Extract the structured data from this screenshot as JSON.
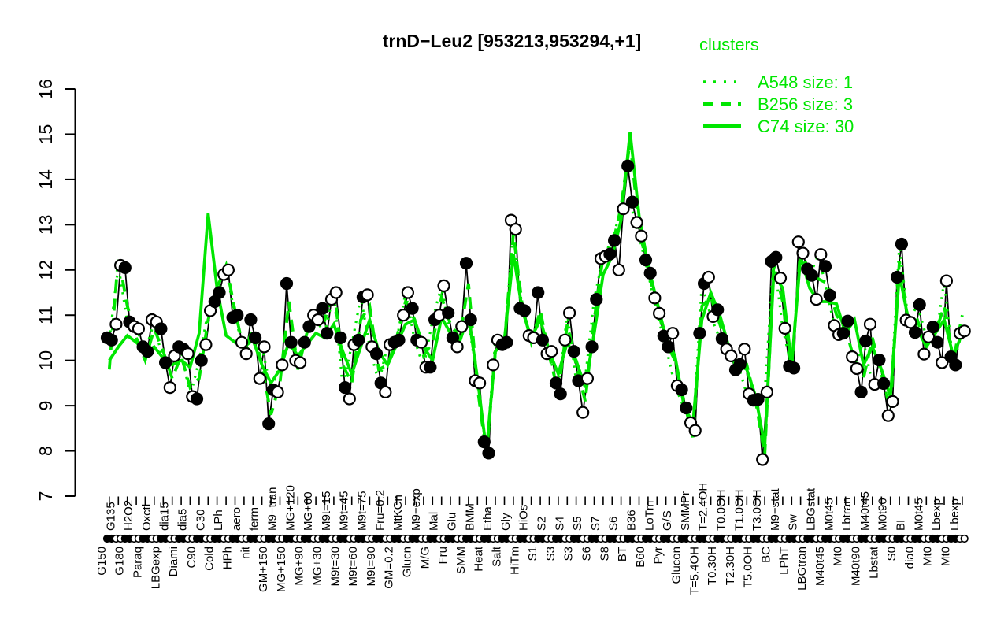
{
  "chart_data": {
    "type": "line",
    "title": "trnD−Leu2 [953213,953294,+1]",
    "ylabel": "",
    "xlabel": "",
    "ylim": [
      7,
      16
    ],
    "yticks": [
      7,
      8,
      9,
      10,
      11,
      12,
      13,
      14,
      15,
      16
    ],
    "grid": false,
    "colors": {
      "cluster_green": "#00e600",
      "points_black": "#000000",
      "background": "#ffffff"
    },
    "legend": {
      "heading": "clusters",
      "position": "top-right",
      "entries": [
        {
          "label": "A548 size: 1",
          "style": "dotted"
        },
        {
          "label": "B256 size: 3",
          "style": "dashed"
        },
        {
          "label": "C74 size: 30",
          "style": "solid"
        }
      ]
    },
    "point_series_note": "black profile points, 2 replicates per condition; marker fill alternates per condition group (filled/open), same markers repeated as rug along the x axis",
    "conditions": [
      [
        "G150",
        "b",
        10.5,
        10.45
      ],
      [
        "G135",
        "t",
        10.8,
        12.1
      ],
      [
        "G180",
        "b",
        12.05,
        10.85
      ],
      [
        "H2O2",
        "t",
        10.75,
        10.7
      ],
      [
        "Paraq",
        "b",
        10.3,
        10.2
      ],
      [
        "Oxctl",
        "t",
        10.9,
        10.85
      ],
      [
        "LBGexp",
        "b",
        10.7,
        9.95
      ],
      [
        "dia15",
        "t",
        9.4,
        10.1
      ],
      [
        "Diami",
        "b",
        10.3,
        10.25
      ],
      [
        "dia5",
        "t",
        10.15,
        9.2
      ],
      [
        "C90",
        "b",
        9.15,
        10.0
      ],
      [
        "C30",
        "t",
        10.35,
        11.1
      ],
      [
        "Cold",
        "b",
        11.3,
        11.5
      ],
      [
        "LPh",
        "t",
        11.9,
        12.0
      ],
      [
        "HPh",
        "b",
        10.95,
        11.0
      ],
      [
        "aero",
        "t",
        10.4,
        10.15
      ],
      [
        "nit",
        "b",
        10.9,
        10.5
      ],
      [
        "ferm",
        "t",
        9.6,
        10.3
      ],
      [
        "GM+150",
        "b",
        8.6,
        9.35
      ],
      [
        "M9−tran",
        "t",
        9.3,
        9.9
      ],
      [
        "MG+150",
        "b",
        11.7,
        10.4
      ],
      [
        "MG+120",
        "t",
        10.0,
        9.95
      ],
      [
        "MG+90",
        "b",
        10.4,
        10.75
      ],
      [
        "MG+60",
        "t",
        11.0,
        10.9
      ],
      [
        "MG+30",
        "b",
        11.15,
        10.6
      ],
      [
        "M9t=15",
        "t",
        11.35,
        11.5
      ],
      [
        "M9t=30",
        "b",
        10.5,
        9.4
      ],
      [
        "M9t=45",
        "t",
        9.15,
        10.35
      ],
      [
        "M9t=60",
        "b",
        10.45,
        11.4
      ],
      [
        "M9t=75",
        "t",
        11.45,
        10.3
      ],
      [
        "M9t=90",
        "b",
        10.15,
        9.5
      ],
      [
        "Fru=0.2",
        "t",
        9.3,
        10.35
      ],
      [
        "GM=0.2",
        "b",
        10.4,
        10.45
      ],
      [
        "MtKCn",
        "t",
        11.0,
        11.5
      ],
      [
        "Glucn",
        "b",
        11.15,
        10.45
      ],
      [
        "M9−exp",
        "t",
        10.4,
        9.85
      ],
      [
        "M/G",
        "b",
        9.85,
        10.9
      ],
      [
        "Mal",
        "t",
        11.0,
        11.65
      ],
      [
        "Fru",
        "b",
        11.05,
        10.5
      ],
      [
        "Glu",
        "t",
        10.3,
        10.75
      ],
      [
        "SMM",
        "b",
        12.15,
        10.9
      ],
      [
        "BMM",
        "t",
        9.55,
        9.5
      ],
      [
        "Heat",
        "b",
        8.2,
        7.95
      ],
      [
        "Etha",
        "t",
        9.9,
        10.45
      ],
      [
        "Salt",
        "b",
        10.35,
        10.4
      ],
      [
        "Gly",
        "t",
        13.1,
        12.9
      ],
      [
        "HiTm",
        "b",
        11.15,
        11.1
      ],
      [
        "HiOs",
        "t",
        10.55,
        10.5
      ],
      [
        "S1",
        "b",
        11.5,
        10.45
      ],
      [
        "S2",
        "t",
        10.15,
        10.2
      ],
      [
        "S3",
        "b",
        9.5,
        9.26
      ],
      [
        "S4",
        "t",
        10.45,
        11.05
      ],
      [
        "S3",
        "b",
        10.2,
        9.55
      ],
      [
        "S5",
        "t",
        8.85,
        9.6
      ],
      [
        "S6",
        "b",
        10.3,
        11.35
      ],
      [
        "S7",
        "t",
        12.25,
        12.3
      ],
      [
        "S8",
        "b",
        12.35,
        12.65
      ],
      [
        "S6",
        "t",
        12.0,
        13.35
      ],
      [
        "BT",
        "b",
        14.3,
        13.5
      ],
      [
        "B36",
        "t",
        13.05,
        12.75
      ],
      [
        "B60",
        "b",
        12.22,
        11.93
      ],
      [
        "LoTm",
        "t",
        11.38,
        11.04
      ],
      [
        "Pyr",
        "b",
        10.54,
        10.3
      ],
      [
        "G/S",
        "t",
        10.6,
        9.44
      ],
      [
        "Glucon",
        "b",
        9.35,
        8.95
      ],
      [
        "SMMPr",
        "t",
        8.62,
        8.45
      ],
      [
        "T=5.4OH",
        "b",
        10.6,
        11.7
      ],
      [
        "T=2.4OH",
        "t",
        11.84,
        10.97
      ],
      [
        "T0.30H",
        "b",
        11.12,
        10.48
      ],
      [
        "T0.0OH",
        "t",
        10.25,
        10.1
      ],
      [
        "T2.30H",
        "b",
        9.79,
        9.91
      ],
      [
        "T1.0OH",
        "t",
        10.25,
        9.26
      ],
      [
        "T5.0OH",
        "b",
        9.12,
        9.14
      ],
      [
        "T3.0OH",
        "t",
        7.81,
        9.3
      ],
      [
        "BC",
        "b",
        12.19,
        12.28
      ],
      [
        "M9−stat",
        "t",
        11.82,
        10.71
      ],
      [
        "LPhT",
        "b",
        9.87,
        9.83
      ],
      [
        "Sw",
        "t",
        12.62,
        12.37
      ],
      [
        "LBGtran",
        "b",
        12.02,
        11.88
      ],
      [
        "LBGstat",
        "t",
        11.35,
        12.34
      ],
      [
        "M40t45",
        "b",
        12.08,
        11.44
      ],
      [
        "M0t45",
        "t",
        10.77,
        10.57
      ],
      [
        "Mt0",
        "b",
        10.6,
        10.87
      ],
      [
        "Lbtran",
        "t",
        10.08,
        9.82
      ],
      [
        "M40t90",
        "b",
        9.3,
        10.43
      ],
      [
        "M40t45",
        "t",
        10.8,
        9.47
      ],
      [
        "Lbstat",
        "b",
        10.01,
        9.49
      ],
      [
        "M0t90",
        "t",
        8.78,
        9.09
      ],
      [
        "S0",
        "b",
        11.84,
        12.57
      ],
      [
        "BI",
        "t",
        10.89,
        10.84
      ],
      [
        "dia0",
        "b",
        10.62,
        11.23
      ],
      [
        "M0t45",
        "t",
        10.14,
        10.52
      ],
      [
        "Mt0",
        "b",
        10.74,
        10.4
      ],
      [
        "Lbexp",
        "t",
        9.95,
        11.76
      ],
      [
        "Mt0",
        "b",
        10.08,
        9.9
      ],
      [
        "Lbexp",
        "t",
        10.6,
        10.65
      ]
    ],
    "cluster_series": [
      {
        "name": "A548",
        "size": 1,
        "style": "dotted",
        "values": [
          10.45,
          12.1,
          10.85,
          10.7,
          10.2,
          10.85,
          9.95,
          10.1,
          10.25,
          9.2,
          10.0,
          11.1,
          11.5,
          12.0,
          11.0,
          10.15,
          10.5,
          10.3,
          9.35,
          9.9,
          10.4,
          9.95,
          10.75,
          10.9,
          10.6,
          11.5,
          9.4,
          10.35,
          11.4,
          10.3,
          9.5,
          10.35,
          10.45,
          11.5,
          10.45,
          9.85,
          10.9,
          11.65,
          10.5,
          10.75,
          10.9,
          9.5,
          7.95,
          10.45,
          10.4,
          12.9,
          11.1,
          10.5,
          10.45,
          10.2,
          9.26,
          11.05,
          9.55,
          9.6,
          11.35,
          12.3,
          12.65,
          13.35,
          13.5,
          12.75,
          11.93,
          11.04,
          10.3,
          9.44,
          8.95,
          8.45,
          11.7,
          10.97,
          10.48,
          10.1,
          9.91,
          9.26,
          9.14,
          9.3,
          12.28,
          10.71,
          9.83,
          12.37,
          11.88,
          12.34,
          11.44,
          10.57,
          10.87,
          9.82,
          10.43,
          9.47,
          9.49,
          9.09,
          12.57,
          10.84,
          11.23,
          10.52,
          10.4,
          11.76,
          9.9,
          10.65
        ]
      },
      {
        "name": "B256",
        "size": 3,
        "style": "dashed",
        "values": [
          9.8,
          12.3,
          11.2,
          10.5,
          10.0,
          10.7,
          10.2,
          9.6,
          10.1,
          9.4,
          9.6,
          10.9,
          11.6,
          12.1,
          11.1,
          10.2,
          10.7,
          9.9,
          8.8,
          9.5,
          11.3,
          9.8,
          10.6,
          11.1,
          10.9,
          11.6,
          9.9,
          9.5,
          10.9,
          11.2,
          9.8,
          9.9,
          10.5,
          11.3,
          10.9,
          10.1,
          10.4,
          11.4,
          10.8,
          10.5,
          11.7,
          9.4,
          7.9,
          10.2,
          10.4,
          12.8,
          11.2,
          10.4,
          11.1,
          10.1,
          9.3,
          10.8,
          9.9,
          9.1,
          10.9,
          12.3,
          12.5,
          13.4,
          14.85,
          12.9,
          12.0,
          11.2,
          10.4,
          10.0,
          9.1,
          8.3,
          11.2,
          11.4,
          10.8,
          10.2,
          9.8,
          9.9,
          9.1,
          7.9,
          12.1,
          11.3,
          9.8,
          12.5,
          11.9,
          11.8,
          11.7,
          11.0,
          10.7,
          10.0,
          9.6,
          10.5,
          9.7,
          8.9,
          12.2,
          10.8,
          10.9,
          10.3,
          10.6,
          11.2,
          10.0,
          11.0
        ]
      },
      {
        "name": "C74",
        "size": 30,
        "style": "solid",
        "values": [
          10.0,
          10.3,
          10.55,
          10.4,
          10.2,
          10.3,
          10.05,
          9.9,
          10.0,
          9.85,
          10.6,
          13.25,
          11.6,
          10.55,
          10.4,
          10.3,
          10.45,
          9.9,
          9.5,
          9.8,
          10.4,
          10.1,
          10.35,
          10.6,
          10.5,
          10.8,
          10.2,
          9.7,
          10.3,
          10.9,
          10.2,
          9.9,
          10.35,
          10.8,
          10.9,
          10.3,
          10.0,
          10.95,
          10.6,
          10.4,
          11.0,
          9.6,
          8.0,
          10.2,
          10.45,
          12.35,
          11.1,
          10.5,
          10.9,
          10.2,
          9.7,
          10.4,
          10.0,
          9.4,
          10.6,
          11.9,
          12.3,
          13.1,
          15.05,
          13.2,
          12.1,
          11.3,
          10.5,
          10.1,
          9.0,
          8.6,
          10.9,
          11.5,
          11.0,
          10.3,
          9.9,
          9.8,
          9.2,
          8.1,
          11.9,
          11.6,
          9.9,
          12.3,
          11.6,
          11.3,
          11.3,
          11.25,
          10.6,
          10.9,
          9.9,
          10.3,
          9.8,
          9.2,
          11.9,
          10.9,
          10.7,
          10.3,
          10.6,
          10.9,
          10.1,
          10.6
        ]
      }
    ]
  }
}
